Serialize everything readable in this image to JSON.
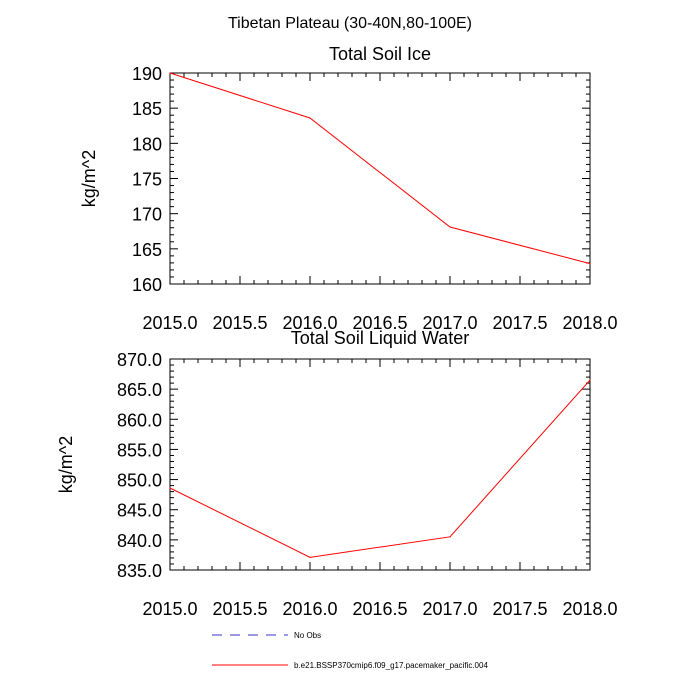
{
  "figure": {
    "title": "Tibetan Plateau (30-40N,80-100E)",
    "legend": [
      {
        "label": "No Obs",
        "color": "#3333cc",
        "dash": "dashed"
      },
      {
        "label": "b.e21.BSSP370cmip6.f09_g17.pacemaker_pacific.004",
        "color": "#ff0000",
        "dash": "solid"
      }
    ]
  },
  "chart_data": [
    {
      "type": "line",
      "title": "Total Soil Ice",
      "xlabel": "",
      "ylabel": "kg/m^2",
      "xlim": [
        2015.0,
        2018.0
      ],
      "ylim": [
        160,
        190
      ],
      "xticks": [
        "2015.0",
        "2015.5",
        "2016.0",
        "2016.5",
        "2017.0",
        "2017.5",
        "2018.0"
      ],
      "yticks": [
        "160",
        "165",
        "170",
        "175",
        "180",
        "185",
        "190"
      ],
      "grid": false,
      "series": [
        {
          "color": "#ff0000",
          "x": [
            2015,
            2016,
            2017,
            2018
          ],
          "values": [
            190.0,
            183.6,
            168.1,
            162.9
          ]
        }
      ]
    },
    {
      "type": "line",
      "title": "Total Soil Liquid Water",
      "xlabel": "",
      "ylabel": "kg/m^2",
      "xlim": [
        2015.0,
        2018.0
      ],
      "ylim": [
        835.0,
        870.0
      ],
      "xticks": [
        "2015.0",
        "2015.5",
        "2016.0",
        "2016.5",
        "2017.0",
        "2017.5",
        "2018.0"
      ],
      "yticks": [
        "835.0",
        "840.0",
        "845.0",
        "850.0",
        "855.0",
        "860.0",
        "865.0",
        "870.0"
      ],
      "grid": false,
      "series": [
        {
          "color": "#ff0000",
          "x": [
            2015,
            2016,
            2017,
            2018
          ],
          "values": [
            848.6,
            837.1,
            840.5,
            866.5
          ]
        }
      ]
    }
  ]
}
